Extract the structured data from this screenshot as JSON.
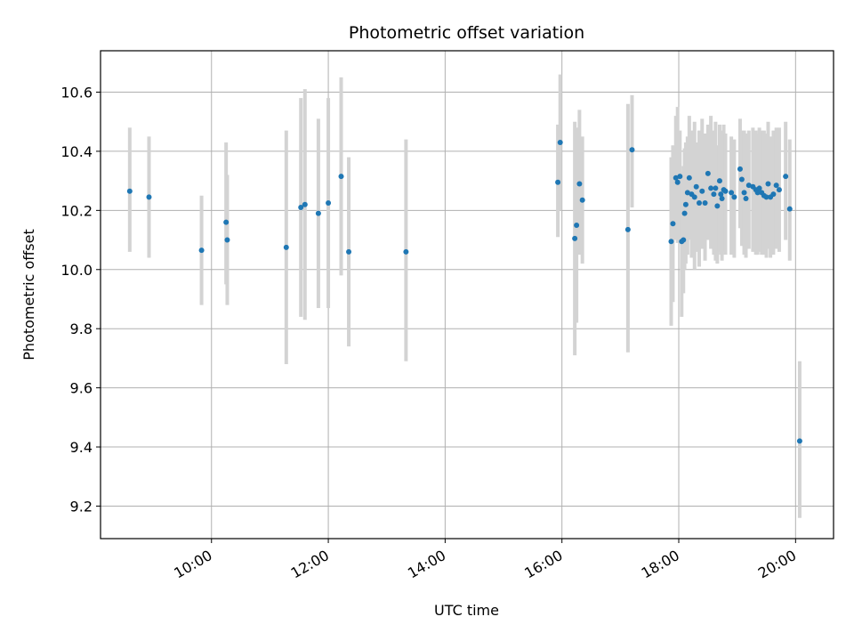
{
  "chart_data": {
    "type": "scatter",
    "title": "Photometric offset variation",
    "xlabel": "UTC time",
    "ylabel": "Photometric offset",
    "x_axis": {
      "unit": "hours UTC",
      "range": [
        8.1,
        20.65
      ],
      "ticks": [
        10,
        12,
        14,
        16,
        18,
        20
      ],
      "tick_labels": [
        "10:00",
        "12:00",
        "14:00",
        "16:00",
        "18:00",
        "20:00"
      ],
      "tick_label_rotation": "30 degrees"
    },
    "y_axis": {
      "range": [
        9.09,
        10.74
      ],
      "ticks": [
        9.2,
        9.4,
        9.6,
        9.8,
        10.0,
        10.2,
        10.4,
        10.6
      ],
      "tick_labels": [
        "9.2",
        "9.4",
        "9.6",
        "9.8",
        "10.0",
        "10.2",
        "10.4",
        "10.6"
      ]
    },
    "grid": true,
    "colors": {
      "point": "#1f77b4",
      "errorbar": "#d3d3d3",
      "grid": "#b0b0b0"
    },
    "points": [
      {
        "x": 8.6,
        "y": 10.265,
        "ylo": 10.06,
        "yhi": 10.48
      },
      {
        "x": 8.93,
        "y": 10.245,
        "ylo": 10.04,
        "yhi": 10.45
      },
      {
        "x": 9.83,
        "y": 10.065,
        "ylo": 9.88,
        "yhi": 10.25
      },
      {
        "x": 10.25,
        "y": 10.16,
        "ylo": 9.95,
        "yhi": 10.43
      },
      {
        "x": 10.27,
        "y": 10.1,
        "ylo": 9.88,
        "yhi": 10.32
      },
      {
        "x": 11.28,
        "y": 10.075,
        "ylo": 9.68,
        "yhi": 10.47
      },
      {
        "x": 11.53,
        "y": 10.21,
        "ylo": 9.84,
        "yhi": 10.58
      },
      {
        "x": 11.6,
        "y": 10.22,
        "ylo": 9.83,
        "yhi": 10.61
      },
      {
        "x": 11.83,
        "y": 10.19,
        "ylo": 9.87,
        "yhi": 10.51
      },
      {
        "x": 12.0,
        "y": 10.225,
        "ylo": 9.87,
        "yhi": 10.58
      },
      {
        "x": 12.22,
        "y": 10.315,
        "ylo": 9.98,
        "yhi": 10.65
      },
      {
        "x": 12.35,
        "y": 10.06,
        "ylo": 9.74,
        "yhi": 10.38
      },
      {
        "x": 13.33,
        "y": 10.06,
        "ylo": 9.69,
        "yhi": 10.44
      },
      {
        "x": 15.93,
        "y": 10.295,
        "ylo": 10.11,
        "yhi": 10.49
      },
      {
        "x": 15.97,
        "y": 10.43,
        "ylo": 10.2,
        "yhi": 10.66
      },
      {
        "x": 16.22,
        "y": 10.105,
        "ylo": 9.71,
        "yhi": 10.5
      },
      {
        "x": 16.25,
        "y": 10.15,
        "ylo": 9.82,
        "yhi": 10.48
      },
      {
        "x": 16.3,
        "y": 10.29,
        "ylo": 10.05,
        "yhi": 10.54
      },
      {
        "x": 16.35,
        "y": 10.235,
        "ylo": 10.02,
        "yhi": 10.45
      },
      {
        "x": 17.13,
        "y": 10.135,
        "ylo": 9.72,
        "yhi": 10.56
      },
      {
        "x": 17.2,
        "y": 10.405,
        "ylo": 10.21,
        "yhi": 10.59
      },
      {
        "x": 17.87,
        "y": 10.095,
        "ylo": 9.81,
        "yhi": 10.38
      },
      {
        "x": 17.9,
        "y": 10.155,
        "ylo": 9.89,
        "yhi": 10.42
      },
      {
        "x": 17.95,
        "y": 10.31,
        "ylo": 10.1,
        "yhi": 10.52
      },
      {
        "x": 17.98,
        "y": 10.295,
        "ylo": 10.09,
        "yhi": 10.55
      },
      {
        "x": 18.02,
        "y": 10.315,
        "ylo": 10.1,
        "yhi": 10.47
      },
      {
        "x": 18.05,
        "y": 10.095,
        "ylo": 9.84,
        "yhi": 10.33
      },
      {
        "x": 18.08,
        "y": 10.1,
        "ylo": 9.92,
        "yhi": 10.35
      },
      {
        "x": 18.1,
        "y": 10.19,
        "ylo": 10.0,
        "yhi": 10.41
      },
      {
        "x": 18.12,
        "y": 10.22,
        "ylo": 10.02,
        "yhi": 10.43
      },
      {
        "x": 18.15,
        "y": 10.26,
        "ylo": 10.05,
        "yhi": 10.45
      },
      {
        "x": 18.18,
        "y": 10.31,
        "ylo": 10.1,
        "yhi": 10.52
      },
      {
        "x": 18.22,
        "y": 10.255,
        "ylo": 10.04,
        "yhi": 10.47
      },
      {
        "x": 18.27,
        "y": 10.245,
        "ylo": 10.0,
        "yhi": 10.5
      },
      {
        "x": 18.3,
        "y": 10.28,
        "ylo": 10.06,
        "yhi": 10.43
      },
      {
        "x": 18.35,
        "y": 10.225,
        "ylo": 10.01,
        "yhi": 10.47
      },
      {
        "x": 18.4,
        "y": 10.265,
        "ylo": 10.07,
        "yhi": 10.51
      },
      {
        "x": 18.45,
        "y": 10.225,
        "ylo": 10.03,
        "yhi": 10.46
      },
      {
        "x": 18.5,
        "y": 10.325,
        "ylo": 10.1,
        "yhi": 10.49
      },
      {
        "x": 18.55,
        "y": 10.275,
        "ylo": 10.07,
        "yhi": 10.52
      },
      {
        "x": 18.6,
        "y": 10.255,
        "ylo": 10.05,
        "yhi": 10.47
      },
      {
        "x": 18.63,
        "y": 10.275,
        "ylo": 10.03,
        "yhi": 10.5
      },
      {
        "x": 18.66,
        "y": 10.215,
        "ylo": 10.02,
        "yhi": 10.42
      },
      {
        "x": 18.7,
        "y": 10.3,
        "ylo": 10.06,
        "yhi": 10.49
      },
      {
        "x": 18.72,
        "y": 10.255,
        "ylo": 10.05,
        "yhi": 10.47
      },
      {
        "x": 18.74,
        "y": 10.24,
        "ylo": 10.03,
        "yhi": 10.45
      },
      {
        "x": 18.77,
        "y": 10.27,
        "ylo": 10.06,
        "yhi": 10.49
      },
      {
        "x": 18.8,
        "y": 10.265,
        "ylo": 10.05,
        "yhi": 10.46
      },
      {
        "x": 18.9,
        "y": 10.26,
        "ylo": 10.05,
        "yhi": 10.45
      },
      {
        "x": 18.95,
        "y": 10.245,
        "ylo": 10.04,
        "yhi": 10.44
      },
      {
        "x": 19.05,
        "y": 10.34,
        "ylo": 10.14,
        "yhi": 10.51
      },
      {
        "x": 19.08,
        "y": 10.305,
        "ylo": 10.08,
        "yhi": 10.47
      },
      {
        "x": 19.12,
        "y": 10.26,
        "ylo": 10.05,
        "yhi": 10.47
      },
      {
        "x": 19.15,
        "y": 10.24,
        "ylo": 10.04,
        "yhi": 10.46
      },
      {
        "x": 19.2,
        "y": 10.285,
        "ylo": 10.07,
        "yhi": 10.47
      },
      {
        "x": 19.27,
        "y": 10.28,
        "ylo": 10.06,
        "yhi": 10.48
      },
      {
        "x": 19.32,
        "y": 10.27,
        "ylo": 10.05,
        "yhi": 10.47
      },
      {
        "x": 19.35,
        "y": 10.26,
        "ylo": 10.05,
        "yhi": 10.46
      },
      {
        "x": 19.38,
        "y": 10.275,
        "ylo": 10.06,
        "yhi": 10.48
      },
      {
        "x": 19.42,
        "y": 10.26,
        "ylo": 10.05,
        "yhi": 10.47
      },
      {
        "x": 19.46,
        "y": 10.25,
        "ylo": 10.05,
        "yhi": 10.47
      },
      {
        "x": 19.5,
        "y": 10.245,
        "ylo": 10.04,
        "yhi": 10.46
      },
      {
        "x": 19.53,
        "y": 10.29,
        "ylo": 10.07,
        "yhi": 10.5
      },
      {
        "x": 19.57,
        "y": 10.245,
        "ylo": 10.04,
        "yhi": 10.45
      },
      {
        "x": 19.62,
        "y": 10.255,
        "ylo": 10.05,
        "yhi": 10.47
      },
      {
        "x": 19.67,
        "y": 10.285,
        "ylo": 10.07,
        "yhi": 10.48
      },
      {
        "x": 19.72,
        "y": 10.27,
        "ylo": 10.06,
        "yhi": 10.48
      },
      {
        "x": 19.83,
        "y": 10.315,
        "ylo": 10.1,
        "yhi": 10.5
      },
      {
        "x": 19.9,
        "y": 10.205,
        "ylo": 10.03,
        "yhi": 10.44
      },
      {
        "x": 20.07,
        "y": 9.42,
        "ylo": 9.16,
        "yhi": 9.69
      }
    ]
  }
}
